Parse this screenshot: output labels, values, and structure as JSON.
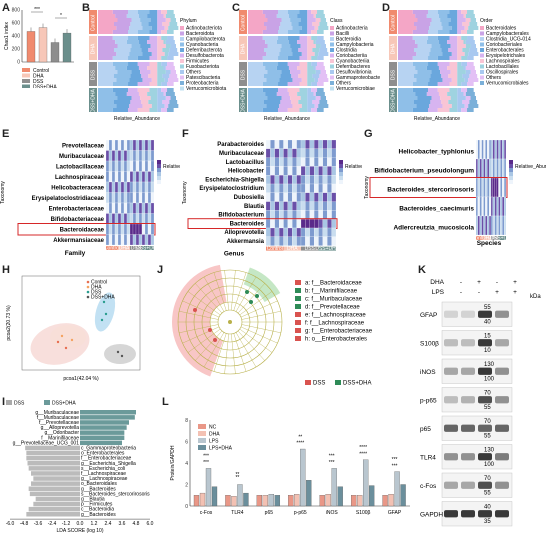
{
  "panel_letters": [
    "A",
    "B",
    "C",
    "D",
    "E",
    "F",
    "G",
    "H",
    "I",
    "J",
    "K",
    "L"
  ],
  "colors": {
    "control": "#f08a6e",
    "dha": "#f7c7b8",
    "dss": "#8e8e8e",
    "dss_dha": "#6b8f8c",
    "lefse_dss": "#d9534f",
    "lefse_dssdha": "#2e8b57"
  },
  "panelA": {
    "ylabel": "Chao1 index",
    "yticks": [
      "800",
      "600",
      "400",
      "200",
      "0"
    ],
    "sig": [
      "***",
      "*"
    ],
    "legend": [
      "Control",
      "DHA",
      "DSS",
      "DSS+DHA"
    ],
    "chart_data": {
      "type": "bar",
      "categories": [
        "Control",
        "DHA",
        "DSS",
        "DSS+DHA"
      ],
      "values": [
        470,
        530,
        300,
        445
      ],
      "ylim": [
        0,
        800
      ]
    }
  },
  "panelB": {
    "groups": [
      "Control",
      "DHA",
      "DSS",
      "DSS+DHA"
    ],
    "xlabel": "Relative_Abundance",
    "legend_title": "Phylum",
    "legend": [
      "Actinobacteriota",
      "Bacteroidota",
      "Campilobacterota",
      "Cyanobacteria",
      "Deferribacterota",
      "Desulfobacterota",
      "Firmicutes",
      "Fusobacteriota",
      "Others",
      "Patescibacteria",
      "Proteobacteria",
      "Verrucomicrobiota"
    ]
  },
  "panelC": {
    "groups": [
      "Control",
      "DHA",
      "DSS",
      "DSS+DHA"
    ],
    "xlabel": "Relative_Abundance",
    "legend_title": "Class",
    "legend": [
      "Actinobacteria",
      "Bacilli",
      "Bacteroidia",
      "Campylobacteria",
      "Clostridia",
      "Coriobacteriia",
      "Cyanobacteriia",
      "Deferribacteres",
      "Desulfovibrionia",
      "Gammaproteobacteria",
      "Others",
      "Verrucomicrobiae"
    ]
  },
  "panelD": {
    "groups": [
      "Control",
      "DHA",
      "DSS",
      "DSS+DHA"
    ],
    "xlabel": "Relative_Abundance",
    "legend_title": "Order",
    "legend": [
      "Bacteroidales",
      "Campylobacterales",
      "Clostridia_UCG-014",
      "Coriobacteriales",
      "Enterobacterales",
      "Erysipelotrichales",
      "Lachnospirales",
      "Lactobacillales",
      "Oscillospirales",
      "Others",
      "Verrucomicrobiales"
    ]
  },
  "panelE": {
    "rows": [
      "Prevotellaceae",
      "Muribaculaceae",
      "Lactobacillaceae",
      "Lachnospiraceae",
      "Helicobacteraceae",
      "Erysipelatoclostridiaceae",
      "Enterobacteriaceae",
      "Bifidobacteriaceae",
      "Bacteroidaceae",
      "Akkermansiaceae"
    ],
    "bottom": "Family",
    "ylabel": "Taxonomy",
    "scale": "Relative_Abundance",
    "highlight": "Bacteroidaceae",
    "xlabels": [
      "Control",
      "DHA",
      "DSS",
      "DSS+DHA"
    ]
  },
  "panelF": {
    "rows": [
      "Parabacteroides",
      "Muribaculaceae",
      "Lactobacillus",
      "Helicobacter",
      "Escherichia-Shigella",
      "Erysipelatoclostridium",
      "Dubosiella",
      "Blautia",
      "Bifidobacterium",
      "Bacteroides",
      "Alloprevotella",
      "Akkermansia"
    ],
    "bottom": "Genus",
    "ylabel": "Taxonomy",
    "scale": "Relative_Abundance",
    "highlight": "Bacteroides",
    "xlabels": [
      "Control",
      "DHA",
      "DSS",
      "DSS+DHA"
    ]
  },
  "panelG": {
    "rows": [
      "Helicobacter_typhlonius",
      "Bifidobacterium_pseudolongum",
      "Bacteroides_stercorirosoris",
      "Bacteroides_caecimuris",
      "Adlercreutzia_mucosicola"
    ],
    "bottom": "Species",
    "ylabel": "Taxonomy",
    "scale": "Relative_Abundance",
    "highlight": "Bacteroides_stercorirosoris",
    "xlabels": [
      "Control",
      "DHA",
      "DSS",
      "DSS+DHA"
    ]
  },
  "panelH": {
    "xlabel": "pcoa1(42.04 %)",
    "ylabel": "pcoa2(20.73 %)",
    "legend": [
      "Control",
      "DHA",
      "DSS",
      "DSS+DHA"
    ]
  },
  "panelI": {
    "legend": [
      "DSS",
      "DSS+DHA"
    ],
    "xlabel": "LDA SCORE (log 10)",
    "xticks": [
      "-6.0",
      "-4.8",
      "-3.6",
      "-2.4",
      "-1.2",
      "0.0",
      "1.2",
      "2.4",
      "3.6",
      "4.8",
      "6.0"
    ],
    "chart_data": {
      "type": "bar",
      "series": [
        {
          "name": "DSS+DHA",
          "categories": [
            "g__Muribaculaceae",
            "f__Muribaculaceae",
            "f__Prevotellaceae",
            "g__Alloprevotella",
            "g__Odoribacter",
            "f__Marinifilaceae",
            "g__Prevotellaceae_UCG_001"
          ],
          "values": [
            4.8,
            4.7,
            4.2,
            4.0,
            3.8,
            3.8,
            3.6
          ]
        },
        {
          "name": "DSS",
          "categories": [
            "c_Gammaproteobacteria",
            "o_Enterobacterales",
            "f__Enterobacteriaceae",
            "g__Escherichia_Shigella",
            "s__Escherichia_coli",
            "f__Lachnospiraceae",
            "g__Lachnospiraceae",
            "o_Bacteroidales",
            "g__Bacteroides",
            "s__Bacteroides_stercorirosoris",
            "g__Blautia",
            "p__Firmicutes",
            "c__Bacteroidia",
            "g__Bacteroides"
          ],
          "values": [
            -4.7,
            -4.6,
            -4.6,
            -4.5,
            -4.4,
            -4.2,
            -4.0,
            -4.2,
            -4.4,
            -4.3,
            -3.8,
            -4.0,
            -4.4,
            -4.6
          ]
        }
      ],
      "xlim": [
        -6,
        6
      ]
    },
    "pos_labels": [
      "g__Muribaculaceae",
      "f__Muribaculaceae",
      "f__Prevotellaceae",
      "g__Alloprevotella",
      "g__Odoribacter",
      "f__Marinifilaceae",
      "g__Prevotellaceae_UCG_001"
    ],
    "neg_labels": [
      "c_Gammaproteobacteria",
      "o_Enterobacterales",
      "f__Enterobacteriaceae",
      "g__Escherichia_Shigella",
      "s__Escherichia_coli",
      "f__Lachnospiraceae",
      "g__Lachnospiraceae",
      "o_Bacteroidales",
      "g__Bacteroides",
      "s__Bacteroides_stercorirosoris",
      "g__Blautia",
      "p__Firmicutes",
      "c__Bacteroidia",
      "g__Bacteroides"
    ]
  },
  "panelJ": {
    "legend": [
      "a: f__Bacteroidaceae",
      "b: f__Marinifilaceae",
      "c: f__Muribaculaceae",
      "d: f__Prevotellaceae",
      "e: f__Lachnospiraceae",
      "f: f__Lachnospiraceae",
      "g: f__Enterobacteriaceae",
      "h: o__Enterobacterales"
    ],
    "legend_colors": [
      "#d9534f",
      "#2e8b57",
      "#2e8b57",
      "#2e8b57",
      "#d9534f",
      "#d9534f",
      "#d9534f",
      "#d9534f"
    ],
    "groups": [
      "DSS",
      "DSS+DHA"
    ]
  },
  "panelK": {
    "treatments": [
      "DHA",
      "LPS"
    ],
    "dha": [
      "-",
      "+",
      "-",
      "+"
    ],
    "lps": [
      "-",
      "-",
      "+",
      "+"
    ],
    "kda": "kDa",
    "blots": [
      {
        "name": "GFAP",
        "kda": [
          "55",
          "40"
        ]
      },
      {
        "name": "S100β",
        "kda": [
          "15",
          "10"
        ]
      },
      {
        "name": "iNOS",
        "kda": [
          "130",
          "100"
        ]
      },
      {
        "name": "p-p65",
        "kda": [
          "70",
          "55"
        ]
      },
      {
        "name": "p65",
        "kda": [
          "70",
          "55"
        ]
      },
      {
        "name": "TLR4",
        "kda": [
          "130",
          "100"
        ]
      },
      {
        "name": "c-Fos",
        "kda": [
          "70",
          "55"
        ]
      },
      {
        "name": "GAPDH",
        "kda": [
          "40",
          "35"
        ]
      }
    ]
  },
  "panelL": {
    "ylabel": "Protein/GAPDH",
    "legend": [
      "NC",
      "DHA",
      "LPS",
      "LPS+DHA"
    ],
    "yticks": [
      "8",
      "6",
      "4",
      "2",
      "0"
    ],
    "categories": [
      "c-Fos",
      "TLR4",
      "p65",
      "p-p65",
      "iNOS",
      "S100β",
      "GFAP"
    ],
    "sig": [
      "***",
      "***",
      "**",
      "**",
      "****",
      "**",
      "***",
      "***",
      "****",
      "****",
      "***",
      "***"
    ],
    "chart_data": {
      "type": "bar",
      "categories": [
        "c-Fos",
        "TLR4",
        "p65",
        "p-p65",
        "iNOS",
        "S100β",
        "GFAP"
      ],
      "series": [
        {
          "name": "NC",
          "values": [
            1.0,
            1.0,
            1.0,
            1.0,
            1.0,
            1.0,
            1.0
          ]
        },
        {
          "name": "DHA",
          "values": [
            1.2,
            0.9,
            1.0,
            1.1,
            1.1,
            1.0,
            1.1
          ]
        },
        {
          "name": "LPS",
          "values": [
            3.5,
            2.0,
            1.1,
            5.3,
            3.5,
            4.3,
            3.2
          ]
        },
        {
          "name": "LPS+DHA",
          "values": [
            1.8,
            1.2,
            1.0,
            2.4,
            1.8,
            1.9,
            2.0
          ]
        }
      ],
      "ylim": [
        0,
        8
      ]
    }
  }
}
